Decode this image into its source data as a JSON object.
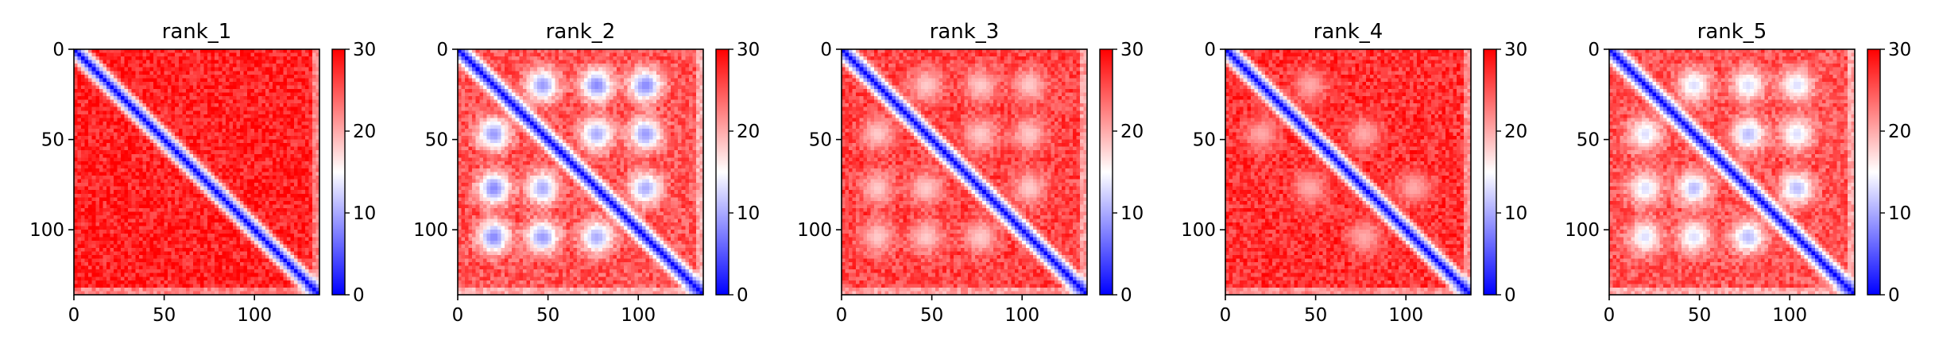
{
  "colors": {
    "cmap_low": "#0000ff",
    "cmap_mid": "#ffffff",
    "cmap_high": "#ff0000",
    "axis": "#000000"
  },
  "chart_data": [
    {
      "type": "heatmap",
      "title": "rank_1",
      "matrix_size": 136,
      "xlim": [
        0,
        136
      ],
      "ylim": [
        136,
        0
      ],
      "xticks": [
        0,
        50,
        100
      ],
      "yticks": [
        0,
        50,
        100
      ],
      "colorbar": {
        "vmin": 0,
        "vmax": 30,
        "ticks": [
          0,
          10,
          20,
          30
        ],
        "cmap": "bwr"
      },
      "pattern": {
        "diagonal_band_width": 4.5,
        "off_diagonal_value": 28,
        "blobs": []
      }
    },
    {
      "type": "heatmap",
      "title": "rank_2",
      "matrix_size": 136,
      "xlim": [
        0,
        136
      ],
      "ylim": [
        136,
        0
      ],
      "xticks": [
        0,
        50,
        100
      ],
      "yticks": [
        0,
        50,
        100
      ],
      "colorbar": {
        "vmin": 0,
        "vmax": 30,
        "ticks": [
          0,
          10,
          20,
          30
        ],
        "cmap": "bwr"
      },
      "pattern": {
        "diagonal_band_width": 4.5,
        "off_diagonal_value": 25,
        "blobs": [
          [
            20,
            47,
            9
          ],
          [
            47,
            20,
            9
          ],
          [
            20,
            77,
            8
          ],
          [
            77,
            20,
            8
          ],
          [
            20,
            104,
            8
          ],
          [
            104,
            20,
            8
          ],
          [
            47,
            77,
            10
          ],
          [
            77,
            47,
            10
          ],
          [
            47,
            104,
            9
          ],
          [
            104,
            47,
            9
          ],
          [
            77,
            104,
            10
          ],
          [
            104,
            77,
            10
          ]
        ]
      }
    },
    {
      "type": "heatmap",
      "title": "rank_3",
      "matrix_size": 136,
      "xlim": [
        0,
        136
      ],
      "ylim": [
        136,
        0
      ],
      "xticks": [
        0,
        50,
        100
      ],
      "yticks": [
        0,
        50,
        100
      ],
      "colorbar": {
        "vmin": 0,
        "vmax": 30,
        "ticks": [
          0,
          10,
          20,
          30
        ],
        "cmap": "bwr"
      },
      "pattern": {
        "diagonal_band_width": 4.5,
        "off_diagonal_value": 26,
        "blobs": [
          [
            20,
            47,
            18
          ],
          [
            47,
            20,
            18
          ],
          [
            20,
            77,
            18
          ],
          [
            77,
            20,
            18
          ],
          [
            20,
            104,
            18
          ],
          [
            104,
            20,
            18
          ],
          [
            47,
            77,
            18
          ],
          [
            77,
            47,
            18
          ],
          [
            47,
            104,
            18
          ],
          [
            104,
            47,
            18
          ],
          [
            77,
            104,
            18
          ],
          [
            104,
            77,
            18
          ]
        ]
      }
    },
    {
      "type": "heatmap",
      "title": "rank_4",
      "matrix_size": 136,
      "xlim": [
        0,
        136
      ],
      "ylim": [
        136,
        0
      ],
      "xticks": [
        0,
        50,
        100
      ],
      "yticks": [
        0,
        50,
        100
      ],
      "colorbar": {
        "vmin": 0,
        "vmax": 30,
        "ticks": [
          0,
          10,
          20,
          30
        ],
        "cmap": "bwr"
      },
      "pattern": {
        "diagonal_band_width": 4.5,
        "off_diagonal_value": 27,
        "blobs": [
          [
            20,
            47,
            20
          ],
          [
            47,
            20,
            20
          ],
          [
            47,
            77,
            20
          ],
          [
            77,
            47,
            20
          ],
          [
            77,
            104,
            20
          ],
          [
            104,
            77,
            20
          ]
        ]
      }
    },
    {
      "type": "heatmap",
      "title": "rank_5",
      "matrix_size": 136,
      "xlim": [
        0,
        136
      ],
      "ylim": [
        136,
        0
      ],
      "xticks": [
        0,
        50,
        100
      ],
      "yticks": [
        0,
        50,
        100
      ],
      "colorbar": {
        "vmin": 0,
        "vmax": 30,
        "ticks": [
          0,
          10,
          20,
          30
        ],
        "cmap": "bwr"
      },
      "pattern": {
        "diagonal_band_width": 4.5,
        "off_diagonal_value": 25,
        "blobs": [
          [
            20,
            47,
            13
          ],
          [
            47,
            20,
            13
          ],
          [
            20,
            77,
            13
          ],
          [
            77,
            20,
            13
          ],
          [
            20,
            104,
            13
          ],
          [
            104,
            20,
            13
          ],
          [
            47,
            77,
            11
          ],
          [
            77,
            47,
            11
          ],
          [
            47,
            104,
            13
          ],
          [
            104,
            47,
            13
          ],
          [
            77,
            104,
            11
          ],
          [
            104,
            77,
            11
          ]
        ]
      }
    }
  ]
}
